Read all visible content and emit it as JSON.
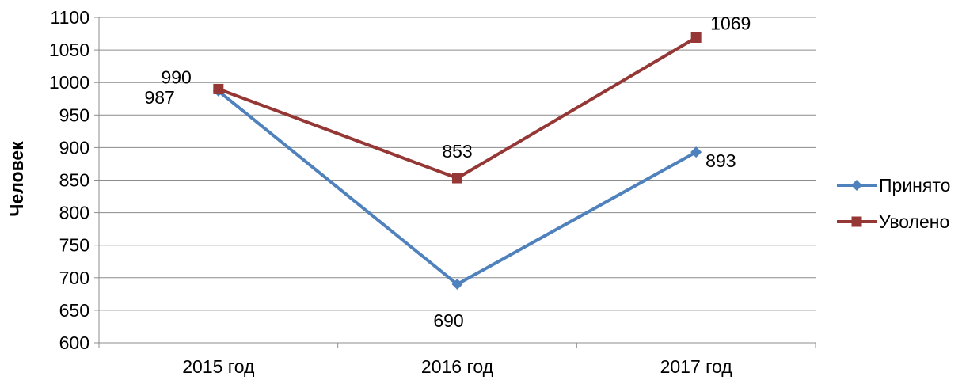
{
  "chart_data": {
    "type": "line",
    "categories": [
      "2015 год",
      "2016 год",
      "2017 год"
    ],
    "series": [
      {
        "name": "Принято",
        "values": [
          987,
          690,
          893
        ],
        "color": "#4f81bd",
        "marker": "diamond"
      },
      {
        "name": "Уволено",
        "values": [
          990,
          853,
          1069
        ],
        "color": "#953735",
        "marker": "square"
      }
    ],
    "ylabel": "Человек",
    "ylim": [
      600,
      1100
    ],
    "ytick_step": 50,
    "grid": true,
    "legend": "right"
  }
}
